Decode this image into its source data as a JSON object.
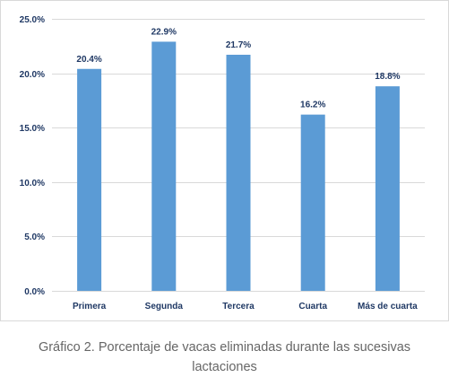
{
  "chart_data": {
    "type": "bar",
    "categories": [
      "Primera",
      "Segunda",
      "Tercera",
      "Cuarta",
      "Más de cuarta"
    ],
    "values": [
      20.4,
      22.9,
      21.7,
      16.2,
      18.8
    ],
    "data_labels": [
      "20.4%",
      "22.9%",
      "21.7%",
      "16.2%",
      "18.8%"
    ],
    "y_ticks": [
      0,
      5,
      10,
      15,
      20,
      25
    ],
    "y_tick_labels": [
      "0.0%",
      "5.0%",
      "10.0%",
      "15.0%",
      "20.0%",
      "25.0%"
    ],
    "ylim": [
      0,
      25
    ],
    "grid": true,
    "legend": "none",
    "bar_color": "#5b9bd5",
    "grid_color": "#d9d9d9",
    "label_color": "#1f3864"
  },
  "caption": "Gráfico 2. Porcentaje de vacas eliminadas durante las sucesivas lactaciones"
}
